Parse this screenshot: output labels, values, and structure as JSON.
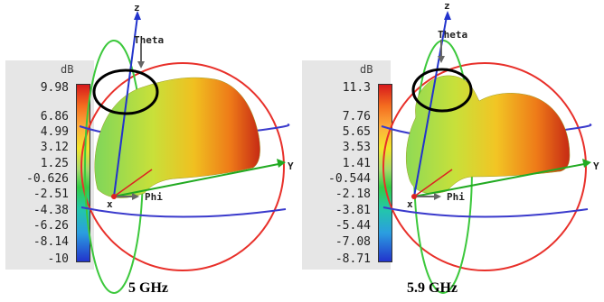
{
  "panels": [
    {
      "frequency": "5 GHz",
      "unit": "dB",
      "ticks": [
        "9.98",
        "6.86",
        "4.99",
        "3.12",
        "1.25",
        "-0.626",
        "-2.51",
        "-4.38",
        "-6.26",
        "-8.14",
        "-10"
      ],
      "axes": {
        "z": "z",
        "y": "Y",
        "x": "x",
        "theta": "Theta",
        "phi": "Phi"
      }
    },
    {
      "frequency": "5.9 GHz",
      "unit": "dB",
      "ticks": [
        "11.3",
        "7.76",
        "5.65",
        "3.53",
        "1.41",
        "-0.544",
        "-2.18",
        "-3.81",
        "-5.44",
        "-7.08",
        "-8.71"
      ],
      "axes": {
        "z": "z",
        "y": "Y",
        "x": "x",
        "theta": "Theta",
        "phi": "Phi"
      }
    }
  ],
  "colors": {
    "sphere_red": "#e8302a",
    "sphere_green": "#3cc83c",
    "sphere_blue": "#3a3acc",
    "highlight_circle": "#000000"
  }
}
